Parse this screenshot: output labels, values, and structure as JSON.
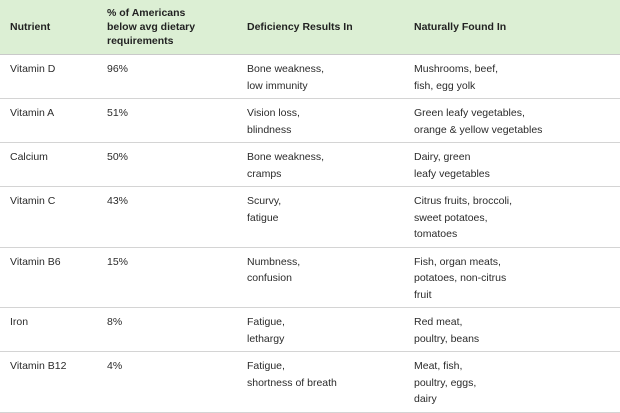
{
  "table": {
    "headers": [
      "Nutrient",
      "% of Americans\nbelow avg dietary\nrequirements",
      "Deficiency Results In",
      "Naturally Found In"
    ],
    "rows": [
      {
        "nutrient": "Vitamin D",
        "percent": "96%",
        "deficiency": "Bone weakness,\nlow immunity",
        "found_in": "Mushrooms, beef,\nfish, egg yolk"
      },
      {
        "nutrient": "Vitamin A",
        "percent": "51%",
        "deficiency": "Vision loss,\nblindness",
        "found_in": "Green leafy vegetables,\norange & yellow vegetables"
      },
      {
        "nutrient": "Calcium",
        "percent": "50%",
        "deficiency": "Bone weakness,\ncramps",
        "found_in": "Dairy, green\nleafy vegetables"
      },
      {
        "nutrient": "Vitamin C",
        "percent": "43%",
        "deficiency": "Scurvy,\nfatigue",
        "found_in": "Citrus fruits, broccoli,\nsweet potatoes,\ntomatoes"
      },
      {
        "nutrient": "Vitamin B6",
        "percent": "15%",
        "deficiency": "Numbness,\nconfusion",
        "found_in": "Fish, organ meats,\npotatoes, non-citrus\nfruit"
      },
      {
        "nutrient": "Iron",
        "percent": "8%",
        "deficiency": "Fatigue,\nlethargy",
        "found_in": "Red meat,\npoultry, beans"
      },
      {
        "nutrient": "Vitamin B12",
        "percent": "4%",
        "deficiency": "Fatigue,\nshortness of breath",
        "found_in": "Meat, fish,\npoultry, eggs,\ndairy"
      }
    ]
  },
  "colors": {
    "header_bg": "#dcefd4",
    "row_border": "#d4d4d4",
    "text": "#2b2b2b"
  }
}
